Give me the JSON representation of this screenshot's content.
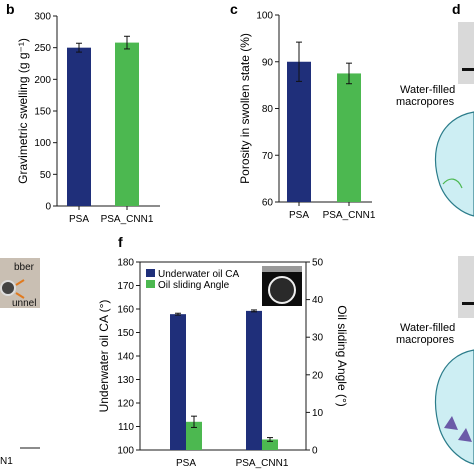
{
  "colors": {
    "navy": "#1f2f7a",
    "green": "#4cb850",
    "axis": "#1a1a1a",
    "cyan": "#cdeef3",
    "cyan_stroke": "#2b7c8a"
  },
  "left_strip": {
    "partial_labels": [
      "bber",
      "unnel",
      "N1"
    ]
  },
  "right_strip": {
    "panel_letter": "d",
    "callout_line1": "Water-filled",
    "callout_line2": "macropores"
  },
  "chart_data": [
    {
      "panel": "b",
      "type": "bar",
      "categories": [
        "PSA",
        "PSA_CNN1"
      ],
      "values": [
        250,
        258
      ],
      "errors": [
        7,
        10
      ],
      "ylabel": "Gravimetric swelling (g g⁻¹)",
      "ylim": [
        0,
        300
      ],
      "yticks": [
        "0",
        "50",
        "100",
        "150",
        "200",
        "250",
        "300"
      ],
      "colors": [
        "#1f2f7a",
        "#4cb850"
      ]
    },
    {
      "panel": "c",
      "type": "bar",
      "categories": [
        "PSA",
        "PSA_CNN1"
      ],
      "values": [
        90,
        87.5
      ],
      "errors": [
        4.2,
        2.2
      ],
      "ylabel": "Porosity in swollen state (%)",
      "ylim": [
        60,
        100
      ],
      "yticks": [
        "60",
        "70",
        "80",
        "90",
        "100"
      ],
      "colors": [
        "#1f2f7a",
        "#4cb850"
      ]
    },
    {
      "panel": "f",
      "type": "bar",
      "categories": [
        "PSA",
        "PSA_CNN1"
      ],
      "series": [
        {
          "name": "Underwater oil CA",
          "axis": "left",
          "values": [
            157.8,
            159.2
          ],
          "errors": [
            0.4,
            0.4
          ],
          "color": "#1f2f7a"
        },
        {
          "name": "Oil sliding Angle",
          "axis": "right",
          "values": [
            7.5,
            2.8
          ],
          "errors": [
            1.5,
            0.5
          ],
          "color": "#4cb850"
        }
      ],
      "ylabel": "Underwater oil CA (°)",
      "ylim": [
        100,
        180
      ],
      "yticks": [
        "100",
        "110",
        "120",
        "130",
        "140",
        "150",
        "160",
        "170",
        "180"
      ],
      "y2label": "Oil sliding Angle (°)",
      "y2lim": [
        0,
        50
      ],
      "y2ticks": [
        "0",
        "10",
        "20",
        "30",
        "40",
        "50"
      ],
      "legend_position": "top"
    }
  ]
}
